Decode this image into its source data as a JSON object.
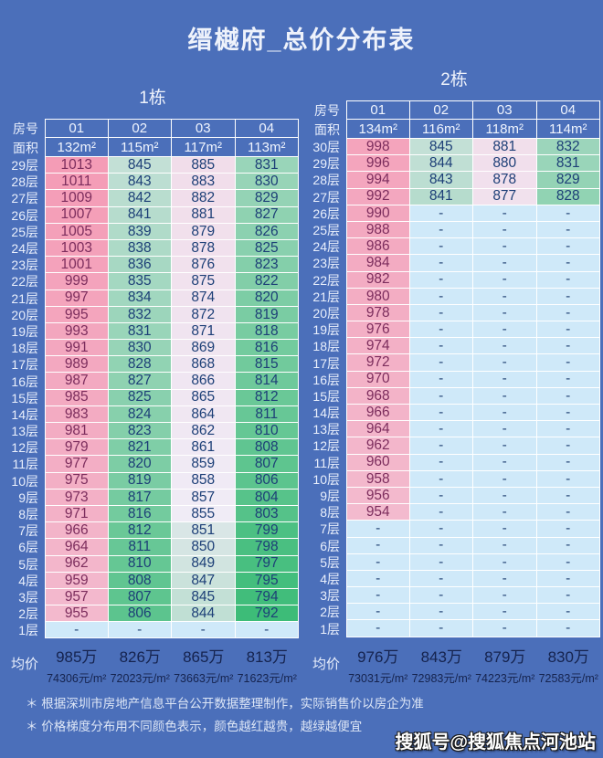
{
  "title": "缙樾府_总价分布表",
  "labels": {
    "room_no": "房号",
    "area": "面积",
    "avg_price": "均价"
  },
  "notes": [
    "＊ 根据深圳市房地产信息平台公开数据整理制作，实际销售价以房企为准",
    "＊ 价格梯度分布用不同颜色表示，颜色越红越贵，越绿越便宜"
  ],
  "watermark": "搜狐号@搜狐焦点河池站",
  "colors": {
    "background": "#4b6fba",
    "cell_border": "#ffffff",
    "col1_text": "#7c2d5d",
    "value_text": "#1d3f77",
    "na_bg": "#cfe9f9",
    "na_text": "#2a4a7a",
    "avg_text": "#15234e",
    "scale_high": "#f49cb6",
    "scale_mid": "#f0ecf6",
    "scale_low": "#3dbc78"
  },
  "scale": {
    "min": 792,
    "mid": 855,
    "max": 1013,
    "green_ease": 0.75
  },
  "chart_data": {
    "type": "table",
    "title": "缙樾府_总价分布表",
    "value_meaning": "总价(万元)，颜色越红越贵，越绿越便宜；“-”表示无数据",
    "buildings": [
      {
        "name": "1栋",
        "units": [
          "01",
          "02",
          "03",
          "04"
        ],
        "areas": [
          "132m²",
          "115m²",
          "117m²",
          "113m²"
        ],
        "floors": [
          {
            "floor": "29层",
            "values": [
              "1013",
              "845",
              "885",
              "831"
            ]
          },
          {
            "floor": "28层",
            "values": [
              "1011",
              "843",
              "883",
              "830"
            ]
          },
          {
            "floor": "27层",
            "values": [
              "1009",
              "842",
              "882",
              "829"
            ]
          },
          {
            "floor": "26层",
            "values": [
              "1007",
              "841",
              "881",
              "827"
            ]
          },
          {
            "floor": "25层",
            "values": [
              "1005",
              "839",
              "879",
              "826"
            ]
          },
          {
            "floor": "24层",
            "values": [
              "1003",
              "838",
              "878",
              "825"
            ]
          },
          {
            "floor": "23层",
            "values": [
              "1001",
              "836",
              "876",
              "823"
            ]
          },
          {
            "floor": "22层",
            "values": [
              "999",
              "835",
              "875",
              "822"
            ]
          },
          {
            "floor": "21层",
            "values": [
              "997",
              "834",
              "874",
              "820"
            ]
          },
          {
            "floor": "20层",
            "values": [
              "995",
              "832",
              "872",
              "819"
            ]
          },
          {
            "floor": "19层",
            "values": [
              "993",
              "831",
              "871",
              "818"
            ]
          },
          {
            "floor": "18层",
            "values": [
              "991",
              "830",
              "869",
              "816"
            ]
          },
          {
            "floor": "17层",
            "values": [
              "989",
              "828",
              "868",
              "815"
            ]
          },
          {
            "floor": "16层",
            "values": [
              "987",
              "827",
              "866",
              "814"
            ]
          },
          {
            "floor": "15层",
            "values": [
              "985",
              "825",
              "865",
              "812"
            ]
          },
          {
            "floor": "14层",
            "values": [
              "983",
              "824",
              "864",
              "811"
            ]
          },
          {
            "floor": "13层",
            "values": [
              "981",
              "823",
              "862",
              "810"
            ]
          },
          {
            "floor": "12层",
            "values": [
              "979",
              "821",
              "861",
              "808"
            ]
          },
          {
            "floor": "11层",
            "values": [
              "977",
              "820",
              "859",
              "807"
            ]
          },
          {
            "floor": "10层",
            "values": [
              "975",
              "819",
              "858",
              "806"
            ]
          },
          {
            "floor": "9层",
            "values": [
              "973",
              "817",
              "857",
              "804"
            ]
          },
          {
            "floor": "8层",
            "values": [
              "971",
              "816",
              "855",
              "803"
            ]
          },
          {
            "floor": "7层",
            "values": [
              "966",
              "812",
              "851",
              "799"
            ]
          },
          {
            "floor": "6层",
            "values": [
              "964",
              "811",
              "850",
              "798"
            ]
          },
          {
            "floor": "5层",
            "values": [
              "962",
              "810",
              "849",
              "797"
            ]
          },
          {
            "floor": "4层",
            "values": [
              "959",
              "808",
              "847",
              "795"
            ]
          },
          {
            "floor": "3层",
            "values": [
              "957",
              "807",
              "845",
              "794"
            ]
          },
          {
            "floor": "2层",
            "values": [
              "955",
              "806",
              "844",
              "792"
            ]
          },
          {
            "floor": "1层",
            "values": [
              "-",
              "-",
              "-",
              "-"
            ]
          }
        ],
        "averages": [
          {
            "total": "985万",
            "per_sqm": "74306元/m²"
          },
          {
            "total": "826万",
            "per_sqm": "72023元/m²"
          },
          {
            "total": "865万",
            "per_sqm": "73663元/m²"
          },
          {
            "total": "813万",
            "per_sqm": "71623元/m²"
          }
        ]
      },
      {
        "name": "2栋",
        "units": [
          "01",
          "02",
          "03",
          "04"
        ],
        "areas": [
          "134m²",
          "116m²",
          "118m²",
          "114m²"
        ],
        "floors": [
          {
            "floor": "30层",
            "values": [
              "998",
              "845",
              "881",
              "832"
            ]
          },
          {
            "floor": "29层",
            "values": [
              "996",
              "844",
              "880",
              "831"
            ]
          },
          {
            "floor": "28层",
            "values": [
              "994",
              "843",
              "878",
              "829"
            ]
          },
          {
            "floor": "27层",
            "values": [
              "992",
              "841",
              "877",
              "828"
            ]
          },
          {
            "floor": "26层",
            "values": [
              "990",
              "-",
              "-",
              "-"
            ]
          },
          {
            "floor": "25层",
            "values": [
              "988",
              "-",
              "-",
              "-"
            ]
          },
          {
            "floor": "24层",
            "values": [
              "986",
              "-",
              "-",
              "-"
            ]
          },
          {
            "floor": "23层",
            "values": [
              "984",
              "-",
              "-",
              "-"
            ]
          },
          {
            "floor": "22层",
            "values": [
              "982",
              "-",
              "-",
              "-"
            ]
          },
          {
            "floor": "21层",
            "values": [
              "980",
              "-",
              "-",
              "-"
            ]
          },
          {
            "floor": "20层",
            "values": [
              "978",
              "-",
              "-",
              "-"
            ]
          },
          {
            "floor": "19层",
            "values": [
              "976",
              "-",
              "-",
              "-"
            ]
          },
          {
            "floor": "18层",
            "values": [
              "974",
              "-",
              "-",
              "-"
            ]
          },
          {
            "floor": "17层",
            "values": [
              "972",
              "-",
              "-",
              "-"
            ]
          },
          {
            "floor": "16层",
            "values": [
              "970",
              "-",
              "-",
              "-"
            ]
          },
          {
            "floor": "15层",
            "values": [
              "968",
              "-",
              "-",
              "-"
            ]
          },
          {
            "floor": "14层",
            "values": [
              "966",
              "-",
              "-",
              "-"
            ]
          },
          {
            "floor": "13层",
            "values": [
              "964",
              "-",
              "-",
              "-"
            ]
          },
          {
            "floor": "12层",
            "values": [
              "962",
              "-",
              "-",
              "-"
            ]
          },
          {
            "floor": "11层",
            "values": [
              "960",
              "-",
              "-",
              "-"
            ]
          },
          {
            "floor": "10层",
            "values": [
              "958",
              "-",
              "-",
              "-"
            ]
          },
          {
            "floor": "9层",
            "values": [
              "956",
              "-",
              "-",
              "-"
            ]
          },
          {
            "floor": "8层",
            "values": [
              "954",
              "-",
              "-",
              "-"
            ]
          },
          {
            "floor": "7层",
            "values": [
              "-",
              "-",
              "-",
              "-"
            ]
          },
          {
            "floor": "6层",
            "values": [
              "-",
              "-",
              "-",
              "-"
            ]
          },
          {
            "floor": "5层",
            "values": [
              "-",
              "-",
              "-",
              "-"
            ]
          },
          {
            "floor": "4层",
            "values": [
              "-",
              "-",
              "-",
              "-"
            ]
          },
          {
            "floor": "3层",
            "values": [
              "-",
              "-",
              "-",
              "-"
            ]
          },
          {
            "floor": "2层",
            "values": [
              "-",
              "-",
              "-",
              "-"
            ]
          },
          {
            "floor": "1层",
            "values": [
              "-",
              "-",
              "-",
              "-"
            ]
          }
        ],
        "averages": [
          {
            "total": "976万",
            "per_sqm": "73031元/m²"
          },
          {
            "total": "843万",
            "per_sqm": "72983元/m²"
          },
          {
            "total": "879万",
            "per_sqm": "74223元/m²"
          },
          {
            "total": "830万",
            "per_sqm": "72583元/m²"
          }
        ]
      }
    ]
  }
}
